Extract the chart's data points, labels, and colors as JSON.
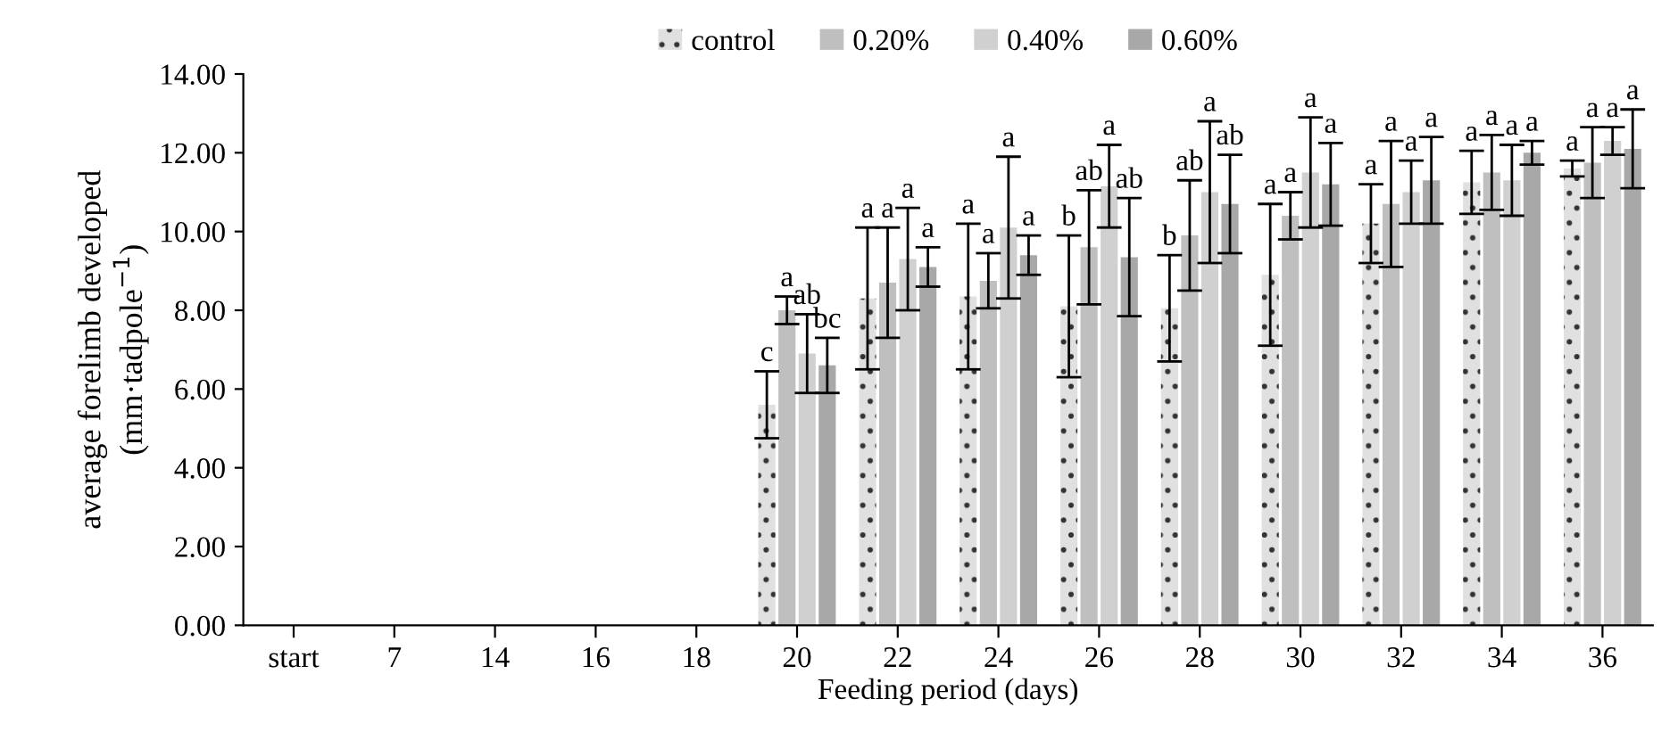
{
  "chart_data": {
    "type": "bar",
    "xlabel": "Feeding period (days)",
    "ylabel": "average forelimb developed\n(mm·tadpole$^{−1}$)",
    "categories": [
      "start",
      "7",
      "14",
      "16",
      "18",
      "20",
      "22",
      "24",
      "26",
      "28",
      "30",
      "32",
      "34",
      "36"
    ],
    "series": [
      {
        "name": "control",
        "color": "#e0e0e0",
        "values": [
          null,
          null,
          null,
          null,
          null,
          5.6,
          8.3,
          8.35,
          8.1,
          8.05,
          8.9,
          10.2,
          11.25,
          11.6
        ],
        "errors": [
          null,
          null,
          null,
          null,
          null,
          0.85,
          1.8,
          1.85,
          1.8,
          1.35,
          1.8,
          1.0,
          0.8,
          0.2
        ],
        "value_labels": [
          null,
          null,
          null,
          null,
          null,
          "c",
          "a",
          "a",
          "b",
          "b",
          "a",
          "a",
          "a",
          "a"
        ]
      },
      {
        "name": "0.20%",
        "color": "#bfbfbf",
        "values": [
          null,
          null,
          null,
          null,
          null,
          8.0,
          8.7,
          8.75,
          9.6,
          9.9,
          10.4,
          10.7,
          11.5,
          11.75
        ],
        "errors": [
          null,
          null,
          null,
          null,
          null,
          0.35,
          1.4,
          0.7,
          1.45,
          1.4,
          0.6,
          1.6,
          0.95,
          0.9
        ],
        "value_labels": [
          null,
          null,
          null,
          null,
          null,
          "a",
          "a",
          "a",
          "ab",
          "ab",
          "a",
          "a",
          "a",
          "a"
        ]
      },
      {
        "name": "0.40%",
        "color": "#d0d0d0",
        "values": [
          null,
          null,
          null,
          null,
          null,
          6.9,
          9.3,
          10.1,
          11.15,
          11.0,
          11.5,
          11.0,
          11.3,
          12.3
        ],
        "errors": [
          null,
          null,
          null,
          null,
          null,
          1.0,
          1.3,
          1.8,
          1.05,
          1.8,
          1.4,
          0.8,
          0.9,
          0.35
        ],
        "value_labels": [
          null,
          null,
          null,
          null,
          null,
          "ab",
          "a",
          "a",
          "a",
          "a",
          "a",
          "a",
          "a",
          "a"
        ]
      },
      {
        "name": "0.60%",
        "color": "#a8a8a8",
        "values": [
          null,
          null,
          null,
          null,
          null,
          6.6,
          9.1,
          9.4,
          9.35,
          10.7,
          11.2,
          11.3,
          12.0,
          12.1
        ],
        "errors": [
          null,
          null,
          null,
          null,
          null,
          0.7,
          0.5,
          0.5,
          1.5,
          1.25,
          1.05,
          1.1,
          0.3,
          1.0
        ],
        "value_labels": [
          null,
          null,
          null,
          null,
          null,
          "bc",
          "a",
          "a",
          "ab",
          "ab",
          "a",
          "a",
          "a",
          "a"
        ]
      }
    ],
    "ylim": [
      0,
      14
    ],
    "yticks": [
      {
        "value": 0,
        "label": "0.00"
      },
      {
        "value": 2,
        "label": "2.00"
      },
      {
        "value": 4,
        "label": "4.00"
      },
      {
        "value": 6,
        "label": "6.00"
      },
      {
        "value": 8,
        "label": "8.00"
      },
      {
        "value": 10,
        "label": "10.00"
      },
      {
        "value": 12,
        "label": "12.00"
      },
      {
        "value": 14,
        "label": "14.00"
      }
    ],
    "grid": false,
    "legend": "top"
  }
}
